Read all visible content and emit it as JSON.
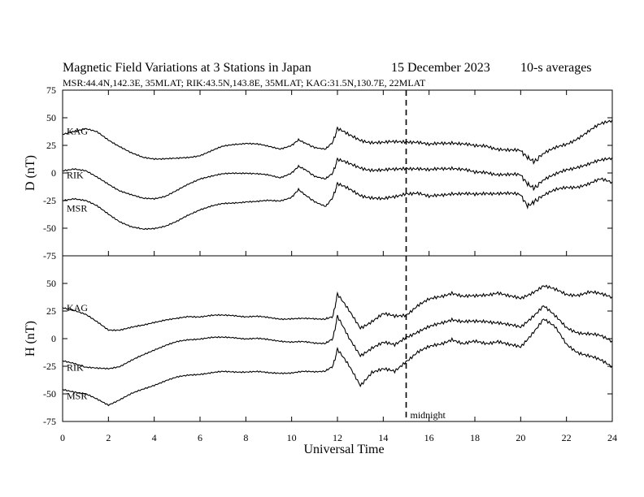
{
  "chart_data": {
    "type": "line",
    "title": "Magnetic Field Variations at 3 Stations in Japan",
    "date": "15 December 2023",
    "averaging": "10-s averages",
    "subtitle": "MSR:44.4N,142.3E, 35MLAT;  RIK:43.5N,143.8E, 35MLAT;  KAG:31.5N,130.7E, 22MLAT",
    "xlabel": "Universal Time",
    "xlim": [
      0,
      24
    ],
    "xticks": [
      0,
      2,
      4,
      6,
      8,
      10,
      12,
      14,
      16,
      18,
      20,
      22,
      24
    ],
    "marker": {
      "x": 15,
      "label": "midnight"
    },
    "panels": [
      {
        "ylabel": "D (nT)",
        "ylim": [
          -75,
          75
        ],
        "yticks": [
          75,
          50,
          25,
          0,
          -25,
          -50,
          -75
        ],
        "series": [
          {
            "name": "KAG",
            "label_y": 38,
            "x": [
              0,
              0.5,
              1,
              1.5,
              2,
              2.5,
              3,
              3.5,
              4,
              4.5,
              5,
              5.5,
              6,
              6.5,
              7,
              7.5,
              8,
              8.5,
              9,
              9.5,
              10,
              10.3,
              10.6,
              11,
              11.5,
              11.8,
              12,
              12.5,
              13,
              13.5,
              14,
              14.5,
              15,
              15.5,
              16,
              16.5,
              17,
              17.5,
              18,
              18.5,
              19,
              19.5,
              20,
              20.3,
              20.6,
              21,
              21.5,
              22,
              22.5,
              23,
              23.5,
              24
            ],
            "y": [
              35,
              38,
              40,
              37,
              30,
              24,
              18,
              14,
              13,
              13,
              13,
              14,
              16,
              20,
              24,
              26,
              27,
              26,
              24,
              22,
              25,
              30,
              27,
              23,
              22,
              28,
              40,
              34,
              30,
              28,
              27,
              28,
              29,
              28,
              25,
              27,
              28,
              26,
              24,
              25,
              22,
              20,
              20,
              14,
              10,
              18,
              22,
              26,
              32,
              38,
              44,
              48
            ]
          },
          {
            "name": "RIK",
            "label_y": -2,
            "x": [
              0,
              0.5,
              1,
              1.5,
              2,
              2.5,
              3,
              3.5,
              4,
              4.5,
              5,
              5.5,
              6,
              6.5,
              7,
              7.5,
              8,
              8.5,
              9,
              9.5,
              10,
              10.3,
              10.6,
              11,
              11.5,
              11.8,
              12,
              12.5,
              13,
              13.5,
              14,
              14.5,
              15,
              15.5,
              16,
              16.5,
              17,
              17.5,
              18,
              18.5,
              19,
              19.5,
              20,
              20.3,
              20.6,
              21,
              21.5,
              22,
              22.5,
              23,
              23.5,
              24
            ],
            "y": [
              2,
              4,
              2,
              -4,
              -10,
              -16,
              -20,
              -23,
              -23,
              -21,
              -16,
              -10,
              -5,
              -3,
              -1,
              0,
              0,
              -1,
              -2,
              -4,
              0,
              6,
              3,
              -3,
              -5,
              0,
              12,
              8,
              5,
              3,
              2,
              3,
              5,
              4,
              2,
              4,
              5,
              3,
              0,
              1,
              -1,
              -2,
              -2,
              -10,
              -14,
              -6,
              -2,
              3,
              6,
              8,
              11,
              14
            ]
          },
          {
            "name": "MSR",
            "label_y": -32,
            "x": [
              0,
              0.5,
              1,
              1.5,
              2,
              2.5,
              3,
              3.5,
              4,
              4.5,
              5,
              5.5,
              6,
              6.5,
              7,
              7.5,
              8,
              8.5,
              9,
              9.5,
              10,
              10.3,
              10.6,
              11,
              11.5,
              11.8,
              12,
              12.5,
              13,
              13.5,
              14,
              14.5,
              15,
              15.5,
              16,
              16.5,
              17,
              17.5,
              18,
              18.5,
              19,
              19.5,
              20,
              20.3,
              20.6,
              21,
              21.5,
              22,
              22.5,
              23,
              23.5,
              24
            ],
            "y": [
              -25,
              -23,
              -25,
              -30,
              -37,
              -44,
              -49,
              -51,
              -50,
              -48,
              -44,
              -38,
              -33,
              -30,
              -28,
              -27,
              -26,
              -26,
              -25,
              -25,
              -22,
              -15,
              -20,
              -26,
              -30,
              -22,
              -10,
              -15,
              -20,
              -22,
              -24,
              -22,
              -18,
              -18,
              -22,
              -20,
              -18,
              -19,
              -20,
              -18,
              -18,
              -19,
              -20,
              -30,
              -26,
              -20,
              -16,
              -13,
              -12,
              -10,
              -6,
              -8
            ]
          }
        ]
      },
      {
        "ylabel": "H (nT)",
        "ylim": [
          -75,
          75
        ],
        "yticks": [
          50,
          25,
          0,
          -25,
          -50,
          -75
        ],
        "series": [
          {
            "name": "KAG",
            "label_y": 28,
            "x": [
              0,
              0.5,
              1,
              1.5,
              2,
              2.5,
              3,
              3.5,
              4,
              4.5,
              5,
              5.5,
              6,
              6.5,
              7,
              7.5,
              8,
              8.5,
              9,
              9.5,
              10,
              10.5,
              11,
              11.5,
              11.8,
              12,
              12.5,
              13,
              13.5,
              14,
              14.5,
              15,
              15.5,
              16,
              16.5,
              17,
              17.5,
              18,
              18.5,
              19,
              19.5,
              20,
              20.5,
              21,
              21.5,
              22,
              22.5,
              23,
              23.5,
              24
            ],
            "y": [
              28,
              26,
              22,
              15,
              8,
              8,
              10,
              12,
              15,
              17,
              18,
              20,
              20,
              21,
              21,
              21,
              20,
              20,
              19,
              18,
              18,
              18,
              18,
              18,
              20,
              40,
              25,
              10,
              16,
              22,
              20,
              22,
              30,
              35,
              38,
              42,
              38,
              38,
              40,
              42,
              38,
              36,
              42,
              48,
              44,
              40,
              40,
              42,
              40,
              38
            ]
          },
          {
            "name": "RIK",
            "label_y": -26,
            "x": [
              0,
              0.5,
              1,
              1.5,
              2,
              2.5,
              3,
              3.5,
              4,
              4.5,
              5,
              5.5,
              6,
              6.5,
              7,
              7.5,
              8,
              8.5,
              9,
              9.5,
              10,
              10.5,
              11,
              11.5,
              11.8,
              12,
              12.5,
              13,
              13.5,
              14,
              14.5,
              15,
              15.5,
              16,
              16.5,
              17,
              17.5,
              18,
              18.5,
              19,
              19.5,
              20,
              20.5,
              21,
              21.5,
              22,
              22.5,
              23,
              23.5,
              24
            ],
            "y": [
              -20,
              -22,
              -26,
              -27,
              -27,
              -25,
              -20,
              -15,
              -10,
              -6,
              -3,
              -1,
              0,
              1,
              1,
              1,
              0,
              0,
              -1,
              -2,
              -3,
              -3,
              -4,
              -4,
              0,
              20,
              0,
              -15,
              -8,
              -4,
              -6,
              2,
              6,
              10,
              14,
              18,
              15,
              15,
              16,
              15,
              12,
              10,
              20,
              30,
              20,
              10,
              6,
              4,
              2,
              -2
            ]
          },
          {
            "name": "MSR",
            "label_y": -52,
            "x": [
              0,
              0.5,
              1,
              1.5,
              2,
              2.5,
              3,
              3.5,
              4,
              4.5,
              5,
              5.5,
              6,
              6.5,
              7,
              7.5,
              8,
              8.5,
              9,
              9.5,
              10,
              10.5,
              11,
              11.5,
              11.8,
              12,
              12.5,
              13,
              13.5,
              14,
              14.5,
              15,
              15.5,
              16,
              16.5,
              17,
              17.5,
              18,
              18.5,
              19,
              19.5,
              20,
              20.5,
              21,
              21.5,
              22,
              22.5,
              23,
              23.5,
              24
            ],
            "y": [
              -46,
              -48,
              -50,
              -55,
              -60,
              -55,
              -50,
              -46,
              -42,
              -38,
              -35,
              -33,
              -32,
              -31,
              -30,
              -30,
              -30,
              -30,
              -31,
              -31,
              -31,
              -30,
              -30,
              -29,
              -25,
              -10,
              -25,
              -42,
              -30,
              -28,
              -30,
              -20,
              -12,
              -8,
              -5,
              0,
              -5,
              -3,
              -4,
              -2,
              -6,
              -8,
              5,
              18,
              10,
              -5,
              -12,
              -16,
              -20,
              -25
            ]
          }
        ]
      }
    ]
  }
}
